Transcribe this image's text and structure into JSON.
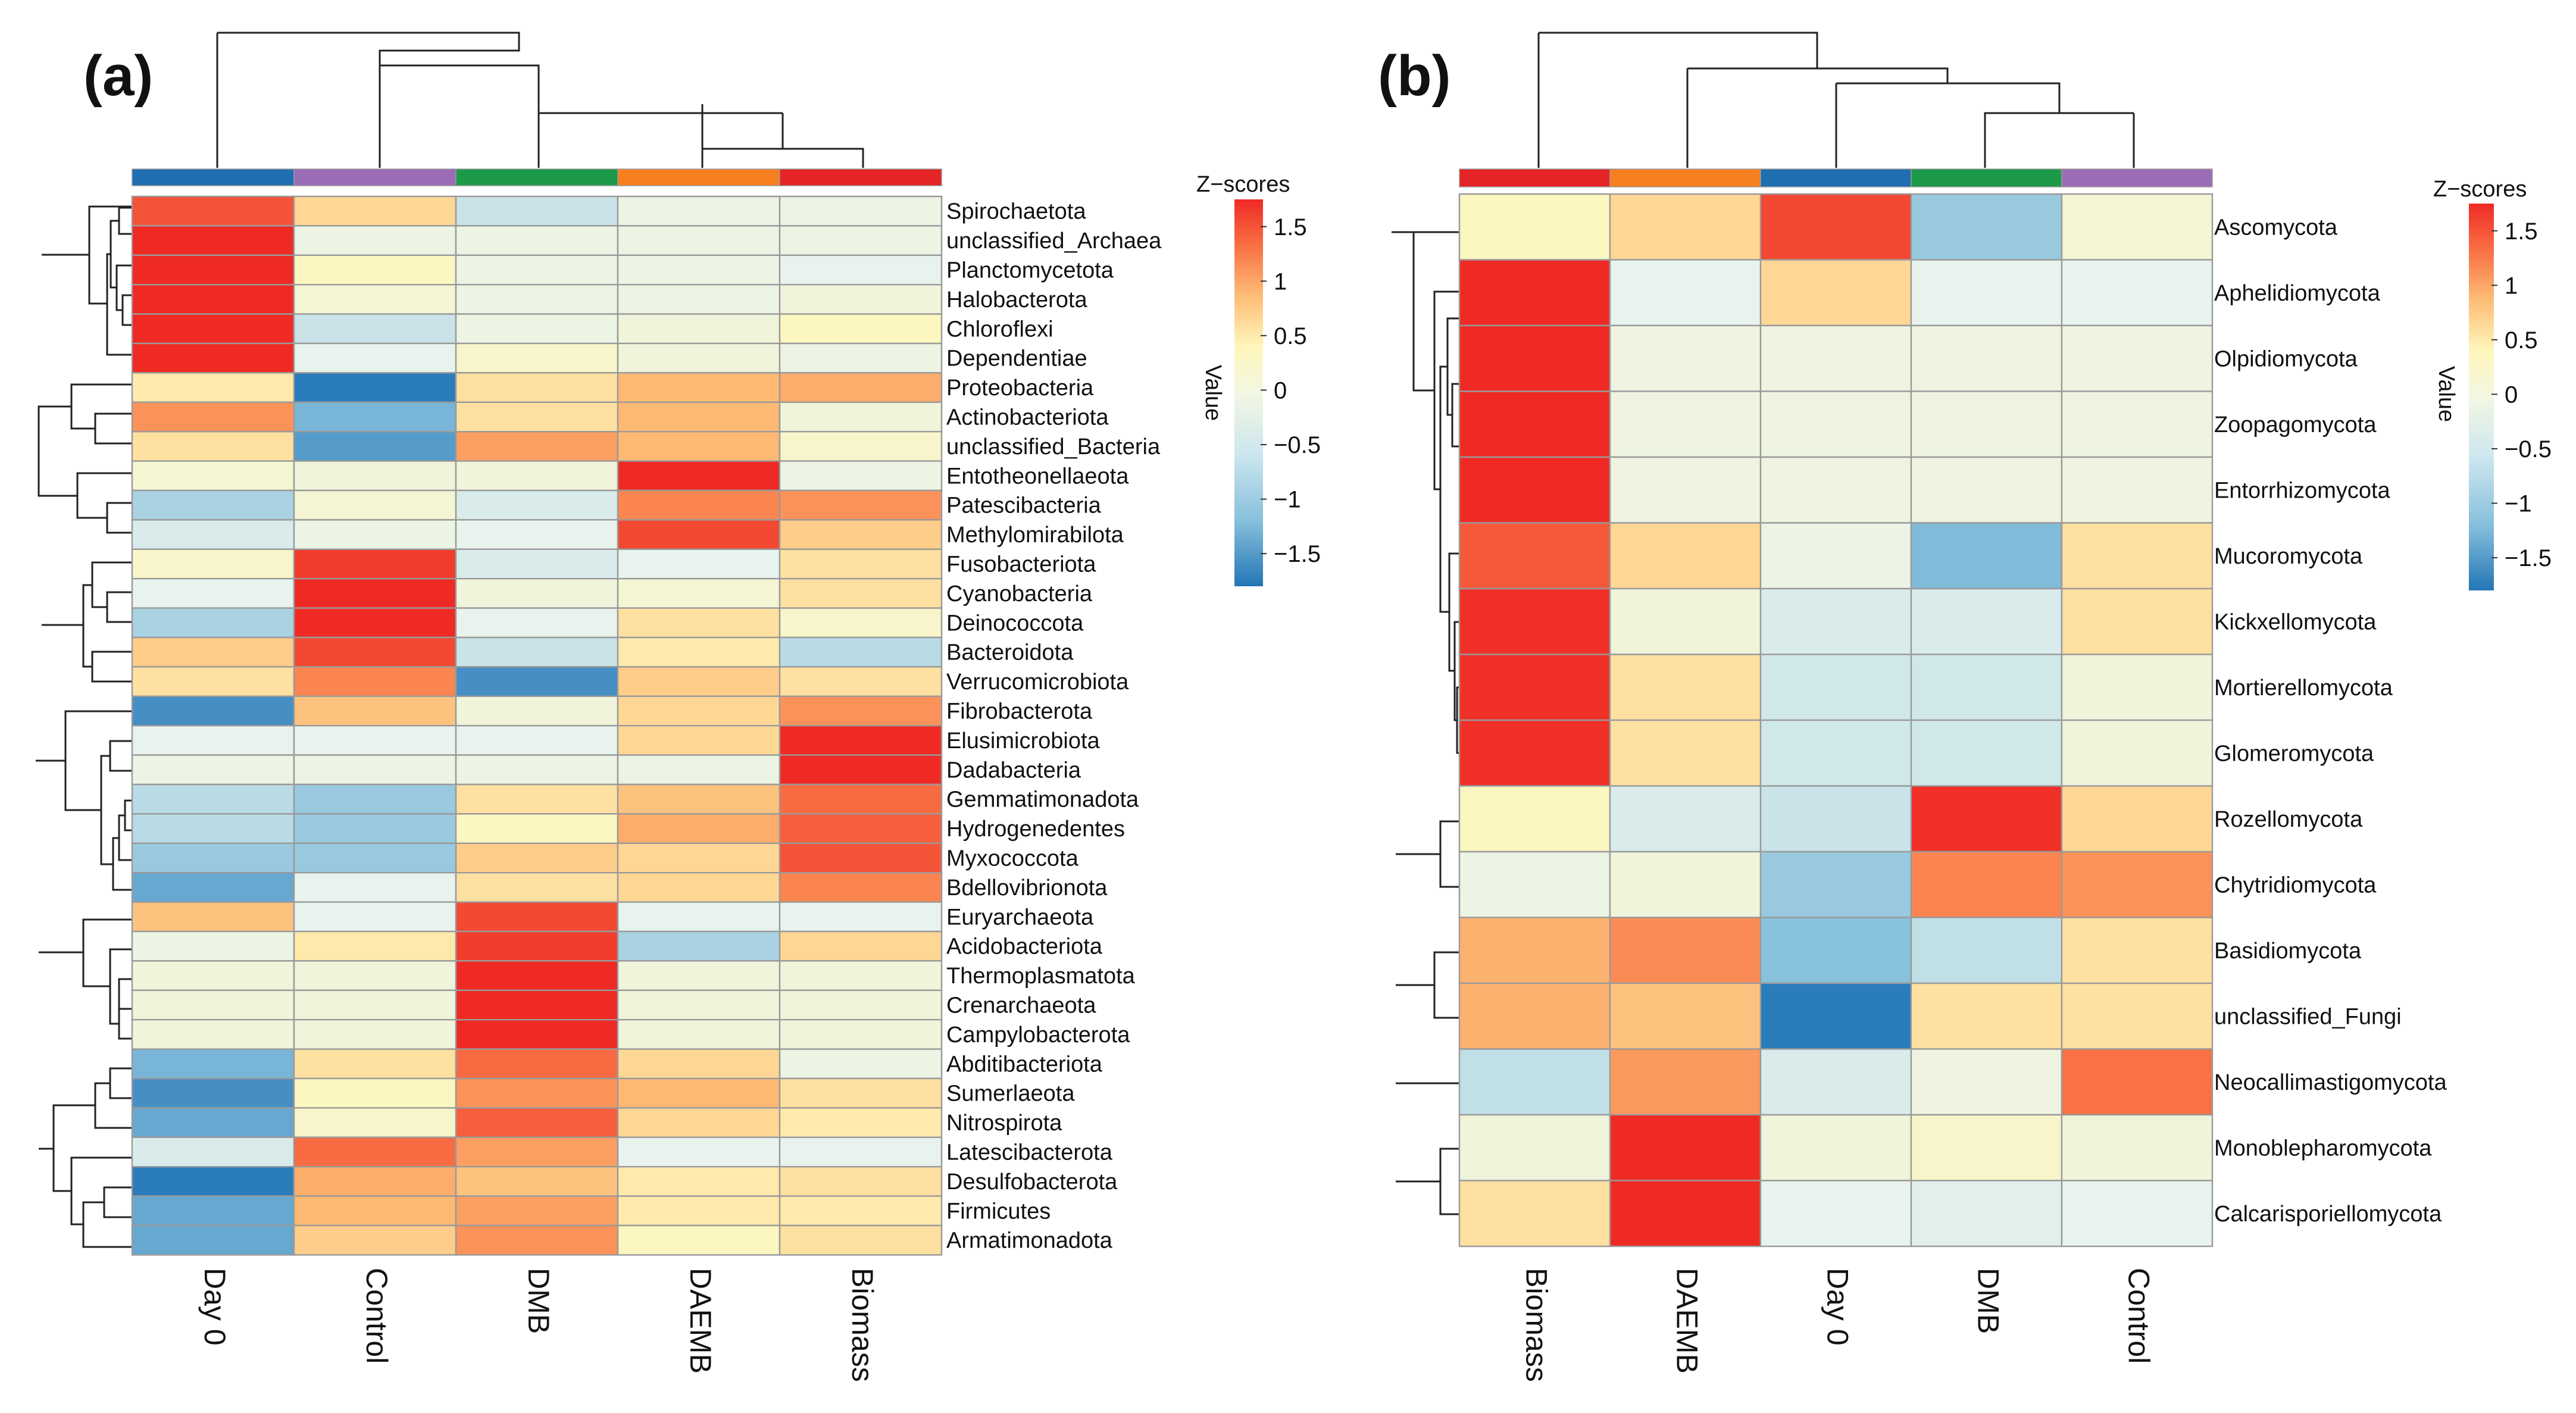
{
  "colors": {
    "scale": [
      "#2376b7",
      "#87c0dc",
      "#e7f3ee",
      "#fff6bb",
      "#fdbd76",
      "#f97044",
      "#ef2a24"
    ],
    "columns": {
      "Day 0": "#1f6fb1",
      "Control": "#9b6cb6",
      "DMB": "#1c9a4a",
      "DAEMB": "#f6801f",
      "Biomass": "#e52427"
    }
  },
  "chart_data": [
    {
      "type": "heatmap",
      "panel": "(a)",
      "columns": [
        "Day 0",
        "Control",
        "DMB",
        "DAEMB",
        "Biomass"
      ],
      "rows": [
        "Spirochaetota",
        "unclassified_Archaea",
        "Planctomycetota",
        "Halobacterota",
        "Chloroflexi",
        "Dependentiae",
        "Proteobacteria",
        "Actinobacteriota",
        "unclassified_Bacteria",
        "Entotheonellaeota",
        "Patescibacteria",
        "Methylomirabilota",
        "Fusobacteriota",
        "Cyanobacteria",
        "Deinococcota",
        "Bacteroidota",
        "Verrucomicrobiota",
        "Fibrobacterota",
        "Elusimicrobiota",
        "Dadabacteria",
        "Gemmatimonadota",
        "Hydrogenedentes",
        "Myxococcota",
        "Bdellovibrionota",
        "Euryarchaeota",
        "Acidobacteriota",
        "Thermoplasmatota",
        "Crenarchaeota",
        "Campylobacterota",
        "Abditibacteriota",
        "Sumerlaeota",
        "Nitrospirota",
        "Latescibacterota",
        "Desulfobacterota",
        "Firmicutes",
        "Armatimonadota"
      ],
      "values": [
        [
          1.4,
          0.3,
          -0.8,
          -0.5,
          -0.5
        ],
        [
          1.75,
          -0.5,
          -0.5,
          -0.5,
          -0.5
        ],
        [
          1.75,
          -0.1,
          -0.5,
          -0.5,
          -0.6
        ],
        [
          1.75,
          -0.3,
          -0.5,
          -0.5,
          -0.4
        ],
        [
          1.75,
          -0.8,
          -0.5,
          -0.4,
          -0.1
        ],
        [
          1.75,
          -0.6,
          -0.2,
          -0.4,
          -0.5
        ],
        [
          0.1,
          -1.75,
          0.2,
          0.6,
          0.7
        ],
        [
          0.9,
          -1.3,
          0.2,
          0.6,
          -0.4
        ],
        [
          0.2,
          -1.5,
          0.8,
          0.6,
          -0.2
        ],
        [
          -0.3,
          -0.4,
          -0.4,
          1.75,
          -0.5
        ],
        [
          -1.0,
          -0.3,
          -0.7,
          1.0,
          0.9
        ],
        [
          -0.7,
          -0.5,
          -0.6,
          1.5,
          0.4
        ],
        [
          -0.2,
          1.6,
          -0.7,
          -0.6,
          0.2
        ],
        [
          -0.6,
          1.75,
          -0.4,
          -0.3,
          0.2
        ],
        [
          -1.0,
          1.75,
          -0.6,
          0.2,
          -0.2
        ],
        [
          0.4,
          1.5,
          -0.8,
          0.1,
          -0.9
        ],
        [
          0.2,
          1.0,
          -1.6,
          0.4,
          0.2
        ],
        [
          -1.6,
          0.5,
          -0.4,
          0.3,
          0.9
        ],
        [
          -0.6,
          -0.6,
          -0.6,
          0.3,
          1.75
        ],
        [
          -0.5,
          -0.5,
          -0.5,
          -0.5,
          1.75
        ],
        [
          -0.9,
          -1.1,
          0.2,
          0.5,
          1.2
        ],
        [
          -0.9,
          -1.1,
          -0.1,
          0.7,
          1.3
        ],
        [
          -1.1,
          -1.1,
          0.4,
          0.3,
          1.4
        ],
        [
          -1.4,
          -0.6,
          0.2,
          0.3,
          1.0
        ],
        [
          0.5,
          -0.6,
          1.5,
          -0.6,
          -0.6
        ],
        [
          -0.5,
          0.1,
          1.6,
          -1.0,
          0.3
        ],
        [
          -0.4,
          -0.4,
          1.75,
          -0.4,
          -0.4
        ],
        [
          -0.4,
          -0.4,
          1.75,
          -0.4,
          -0.4
        ],
        [
          -0.4,
          -0.4,
          1.75,
          -0.4,
          -0.4
        ],
        [
          -1.3,
          0.2,
          1.2,
          0.3,
          -0.5
        ],
        [
          -1.6,
          -0.1,
          0.9,
          0.6,
          0.2
        ],
        [
          -1.4,
          -0.2,
          1.3,
          0.3,
          0.1
        ],
        [
          -0.7,
          1.2,
          0.8,
          -0.6,
          -0.6
        ],
        [
          -1.75,
          0.7,
          0.5,
          0.1,
          0.2
        ],
        [
          -1.4,
          0.6,
          0.8,
          0.1,
          0.1
        ],
        [
          -1.4,
          0.4,
          0.9,
          -0.1,
          0.2
        ]
      ],
      "legend": {
        "title": "Z−scores",
        "axis_label": "Value",
        "ticks": [
          "1.5",
          "1",
          "0.5",
          "0",
          "−0.5",
          "−1",
          "−1.5"
        ],
        "tick_values": [
          1.5,
          1,
          0.5,
          0,
          -0.5,
          -1,
          -1.5
        ],
        "range": [
          -1.8,
          1.75
        ]
      }
    },
    {
      "type": "heatmap",
      "panel": "(b)",
      "columns": [
        "Biomass",
        "DAEMB",
        "Day 0",
        "DMB",
        "Control"
      ],
      "rows": [
        "Ascomycota",
        "Aphelidiomycota",
        "Olpidiomycota",
        "Zoopagomycota",
        "Entorrhizomycota",
        "Mucoromycota",
        "Kickxellomycota",
        "Mortierellomycota",
        "Glomeromycota",
        "Rozellomycota",
        "Chytridiomycota",
        "Basidiomycota",
        "unclassified_Fungi",
        "Neocallimastigomycota",
        "Monoblepharomycota",
        "Calcarisporiellomycota"
      ],
      "values": [
        [
          -0.1,
          0.3,
          1.5,
          -1.1,
          -0.3
        ],
        [
          1.75,
          -0.6,
          0.3,
          -0.6,
          -0.6
        ],
        [
          1.75,
          -0.45,
          -0.45,
          -0.45,
          -0.45
        ],
        [
          1.75,
          -0.45,
          -0.45,
          -0.45,
          -0.45
        ],
        [
          1.75,
          -0.45,
          -0.45,
          -0.45,
          -0.45
        ],
        [
          1.35,
          0.3,
          -0.5,
          -1.25,
          0.2
        ],
        [
          1.7,
          -0.4,
          -0.7,
          -0.7,
          0.2
        ],
        [
          1.7,
          0.2,
          -0.75,
          -0.75,
          -0.4
        ],
        [
          1.7,
          0.2,
          -0.75,
          -0.75,
          -0.4
        ],
        [
          -0.1,
          -0.7,
          -0.8,
          1.7,
          0.3
        ],
        [
          -0.5,
          -0.4,
          -1.1,
          1.0,
          0.9
        ],
        [
          0.65,
          0.95,
          -1.2,
          -0.85,
          0.2
        ],
        [
          0.65,
          0.5,
          -1.75,
          0.2,
          0.2
        ],
        [
          -0.85,
          0.85,
          -0.7,
          -0.45,
          1.15
        ],
        [
          -0.4,
          1.75,
          -0.4,
          -0.2,
          -0.4
        ],
        [
          0.2,
          1.75,
          -0.6,
          -0.65,
          -0.6
        ]
      ],
      "legend": {
        "title": "Z−scores",
        "axis_label": "Value",
        "ticks": [
          "1.5",
          "1",
          "0.5",
          "0",
          "−0.5",
          "−1",
          "−1.5"
        ],
        "tick_values": [
          1.5,
          1,
          0.5,
          0,
          -0.5,
          -1,
          -1.5
        ],
        "range": [
          -1.8,
          1.75
        ]
      }
    }
  ]
}
